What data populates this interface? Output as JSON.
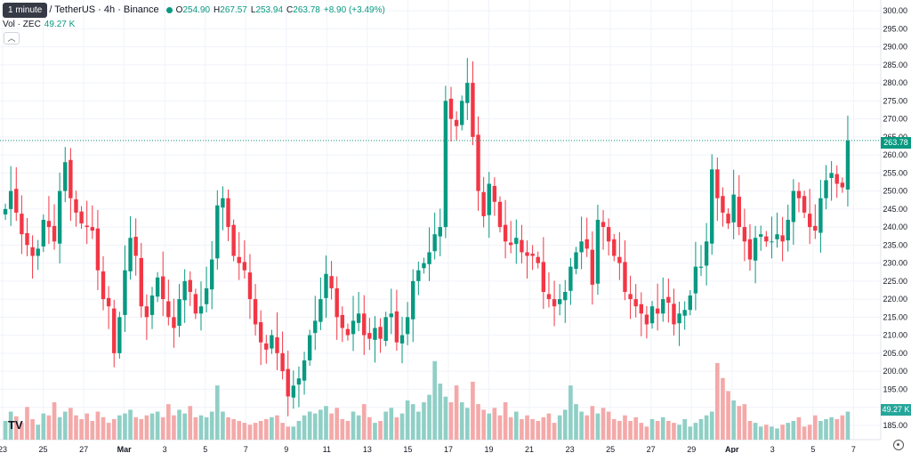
{
  "header": {
    "tooltip": "1 minute",
    "symbol": "/ TetherUS · 4h · Binance",
    "open_label": "O",
    "open": "254.90",
    "high_label": "H",
    "high": "267.57",
    "low_label": "L",
    "low": "253.94",
    "close_label": "C",
    "close": "263.78",
    "change": "+8.90 (+3.49%)"
  },
  "volume_label": {
    "name": "Vol · ZEC",
    "value": "49.27 K"
  },
  "collapse_icon": "chevron-up-icon",
  "last_price_tag": "263.78",
  "volume_tag": "49.27 K",
  "colors": {
    "up": "#089981",
    "down": "#f23645",
    "vol_up": "#8fcfc6",
    "vol_down": "#f4a9a9",
    "grid": "#f0f3fa",
    "tag": "#26a69a"
  },
  "chart_data": {
    "type": "candlestick",
    "price_axis": {
      "min": 182,
      "max": 302,
      "ticks": [
        185,
        190,
        195,
        200,
        205,
        210,
        215,
        220,
        225,
        230,
        235,
        240,
        245,
        250,
        255,
        260,
        265,
        270,
        275,
        280,
        285,
        290,
        295,
        300
      ]
    },
    "x_ticks": [
      "23",
      "25",
      "27",
      "Mar",
      "3",
      "5",
      "7",
      "9",
      "11",
      "13",
      "15",
      "17",
      "19",
      "21",
      "23",
      "25",
      "27",
      "29",
      "Apr",
      "3",
      "5",
      "7"
    ],
    "closes": [
      245,
      250,
      244,
      238,
      235,
      232,
      234,
      242,
      240,
      236,
      250,
      258,
      248,
      244,
      241,
      240,
      239,
      228,
      220,
      218,
      205,
      215,
      228,
      237,
      232,
      218,
      215,
      221,
      226,
      220,
      215,
      212,
      220,
      225,
      222,
      216,
      218,
      223,
      231,
      246,
      248,
      240,
      232,
      230,
      228,
      220,
      213,
      208,
      206,
      210,
      205,
      200,
      193,
      196,
      198,
      203,
      210,
      214,
      220,
      227,
      223,
      215,
      212,
      210,
      214,
      216,
      210,
      209,
      212,
      209,
      215,
      216,
      208,
      210,
      215,
      225,
      228,
      230,
      233,
      238,
      240,
      275,
      270,
      268,
      275,
      280,
      265,
      250,
      243,
      252,
      247,
      240,
      236,
      235,
      237,
      233,
      232,
      232,
      230,
      222,
      220,
      218,
      220,
      222,
      229,
      233,
      236,
      234,
      224,
      242,
      240,
      236,
      232,
      230,
      222,
      220,
      218,
      216,
      213,
      218,
      216,
      220,
      219,
      213,
      216,
      217,
      221,
      229,
      229,
      236,
      256,
      248,
      244,
      241,
      249,
      240,
      236,
      231,
      237,
      238,
      236,
      236,
      238,
      236,
      242,
      250,
      248,
      244,
      240,
      239,
      248,
      253,
      255,
      252,
      251,
      264
    ],
    "volumes": [
      20,
      30,
      25,
      18,
      35,
      22,
      16,
      28,
      26,
      40,
      24,
      30,
      34,
      26,
      22,
      28,
      20,
      30,
      24,
      18,
      22,
      26,
      28,
      32,
      24,
      22,
      26,
      28,
      30,
      24,
      38,
      26,
      32,
      28,
      36,
      24,
      26,
      24,
      30,
      58,
      30,
      24,
      22,
      20,
      18,
      16,
      18,
      20,
      22,
      24,
      26,
      18,
      14,
      14,
      20,
      26,
      30,
      28,
      32,
      36,
      28,
      34,
      22,
      20,
      30,
      26,
      38,
      24,
      18,
      20,
      30,
      34,
      24,
      28,
      42,
      38,
      30,
      40,
      48,
      84,
      60,
      46,
      40,
      58,
      40,
      34,
      62,
      38,
      32,
      28,
      34,
      26,
      40,
      24,
      30,
      22,
      26,
      22,
      20,
      24,
      28,
      18,
      26,
      32,
      58,
      38,
      30,
      26,
      36,
      28,
      34,
      30,
      22,
      20,
      26,
      20,
      24,
      18,
      14,
      22,
      20,
      24,
      20,
      18,
      16,
      22,
      14,
      18,
      22,
      26,
      30,
      82,
      66,
      52,
      42,
      36,
      38,
      20,
      18,
      14,
      16,
      14,
      12,
      16,
      18,
      20,
      24,
      14,
      16,
      26,
      20,
      22,
      24,
      22,
      26,
      30
    ]
  }
}
